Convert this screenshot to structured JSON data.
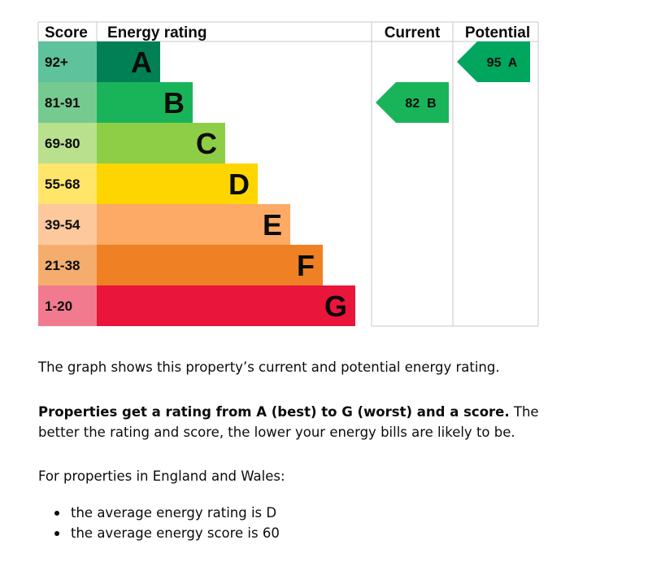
{
  "chart_data": {
    "type": "bar",
    "headers": {
      "score": "Score",
      "rating": "Energy rating",
      "current": "Current",
      "potential": "Potential"
    },
    "bands": [
      {
        "range": "92+",
        "letter": "A",
        "band_color": "#008054",
        "score_bg": "#5ec29c"
      },
      {
        "range": "81-91",
        "letter": "B",
        "band_color": "#19b459",
        "score_bg": "#75cb8f"
      },
      {
        "range": "69-80",
        "letter": "C",
        "band_color": "#8dce46",
        "score_bg": "#b9e08d"
      },
      {
        "range": "55-68",
        "letter": "D",
        "band_color": "#ffd500",
        "score_bg": "#ffe56a"
      },
      {
        "range": "39-54",
        "letter": "E",
        "band_color": "#fcaa65",
        "score_bg": "#fdc99c"
      },
      {
        "range": "21-38",
        "letter": "F",
        "band_color": "#ef8023",
        "score_bg": "#f5ad6e"
      },
      {
        "range": "1-20",
        "letter": "G",
        "band_color": "#e9153b",
        "score_bg": "#f17a8e"
      }
    ],
    "current": {
      "score": 82,
      "letter": "B",
      "label": "82  B",
      "color": "#19b459"
    },
    "potential": {
      "score": 95,
      "letter": "A",
      "label": "95  A",
      "color": "#00a65e"
    }
  },
  "text": {
    "para1": "The graph shows this property’s current and potential energy rating.",
    "para2_bold": "Properties get a rating from A (best) to G (worst) and a score.",
    "para2_rest": " The better the rating and score, the lower your energy bills are likely to be.",
    "para3": "For properties in England and Wales:",
    "bullets": [
      "the average energy rating is D",
      "the average energy score is 60"
    ]
  }
}
